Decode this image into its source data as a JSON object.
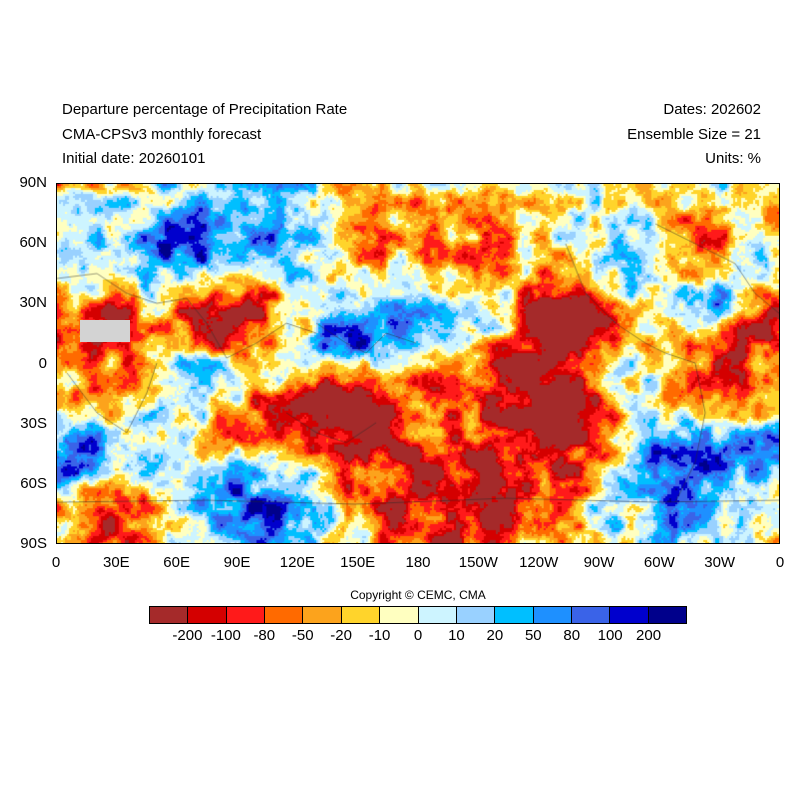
{
  "header": {
    "title": "Departure percentage of Precipitation Rate",
    "model": "CMA-CPSv3 monthly forecast",
    "initial_date": "Initial date: 20260101",
    "dates": "Dates: 202602",
    "ensemble": "Ensemble Size = 21",
    "units": "Units: %"
  },
  "map": {
    "projection": "cylindrical equidistant",
    "lon_range": [
      0,
      360
    ],
    "lat_range": [
      -90,
      90
    ],
    "lat_ticks": [
      "90N",
      "60N",
      "30N",
      "0",
      "30S",
      "60S",
      "90S"
    ],
    "lon_ticks": [
      "0",
      "30E",
      "60E",
      "90E",
      "120E",
      "150E",
      "180",
      "150W",
      "120W",
      "90W",
      "60W",
      "30W",
      "0"
    ],
    "missing_color": "#d3d3d3"
  },
  "colorbar": {
    "colors": [
      "#a52a2a",
      "#d40000",
      "#ff1a1a",
      "#ff6a00",
      "#fca31c",
      "#ffd42b",
      "#ffffc0",
      "#cdf4ff",
      "#99d1ff",
      "#00bfff",
      "#1e90ff",
      "#3a63e8",
      "#0000cd",
      "#00008b"
    ],
    "labels": [
      "-200",
      "-100",
      "-80",
      "-50",
      "-20",
      "-10",
      "0",
      "10",
      "20",
      "50",
      "80",
      "100",
      "200"
    ]
  },
  "copyright": "Copyright © CEMC, CMA"
}
